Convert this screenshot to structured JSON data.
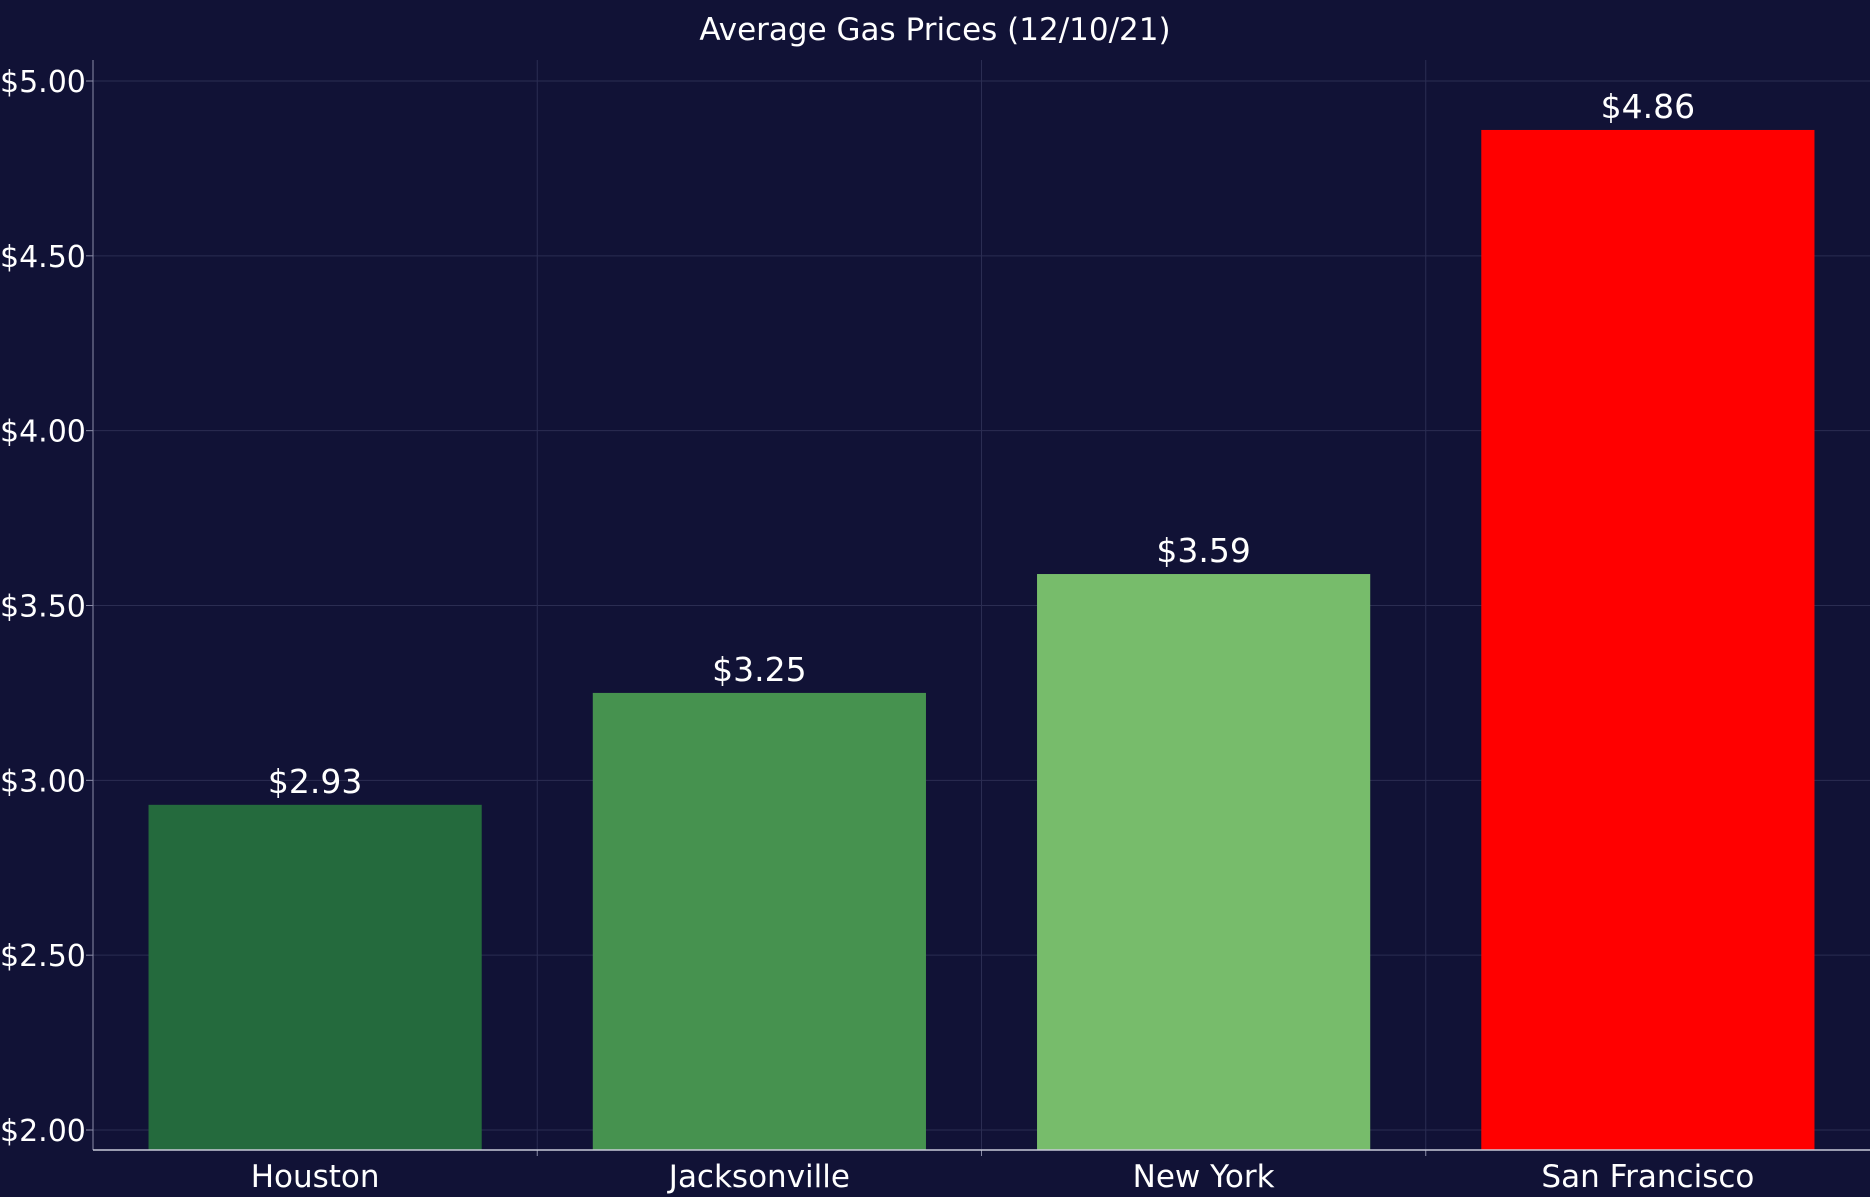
{
  "chart_data": {
    "type": "bar",
    "title": "Average Gas Prices (12/10/21)",
    "xlabel": "",
    "ylabel": "",
    "categories": [
      "Houston",
      "Jacksonville",
      "New York",
      "San Francisco"
    ],
    "values": [
      2.93,
      3.25,
      3.59,
      4.86
    ],
    "value_labels": [
      "$2.93",
      "$3.25",
      "$3.59",
      "$4.86"
    ],
    "colors": [
      "#246a3d",
      "#46924f",
      "#77bc6b",
      "#ff0000"
    ],
    "ylim": [
      2.0,
      5.0
    ],
    "yticks": [
      2.0,
      2.5,
      3.0,
      3.5,
      4.0,
      4.5,
      5.0
    ],
    "ytick_labels": [
      "$2.00",
      "$2.50",
      "$3.00",
      "$3.50",
      "$4.00",
      "$4.50",
      "$5.00"
    ],
    "grid": true,
    "legend": "none",
    "background_color": "#111236",
    "text_color": "#ffffff",
    "grid_color": "#2b2d52"
  }
}
